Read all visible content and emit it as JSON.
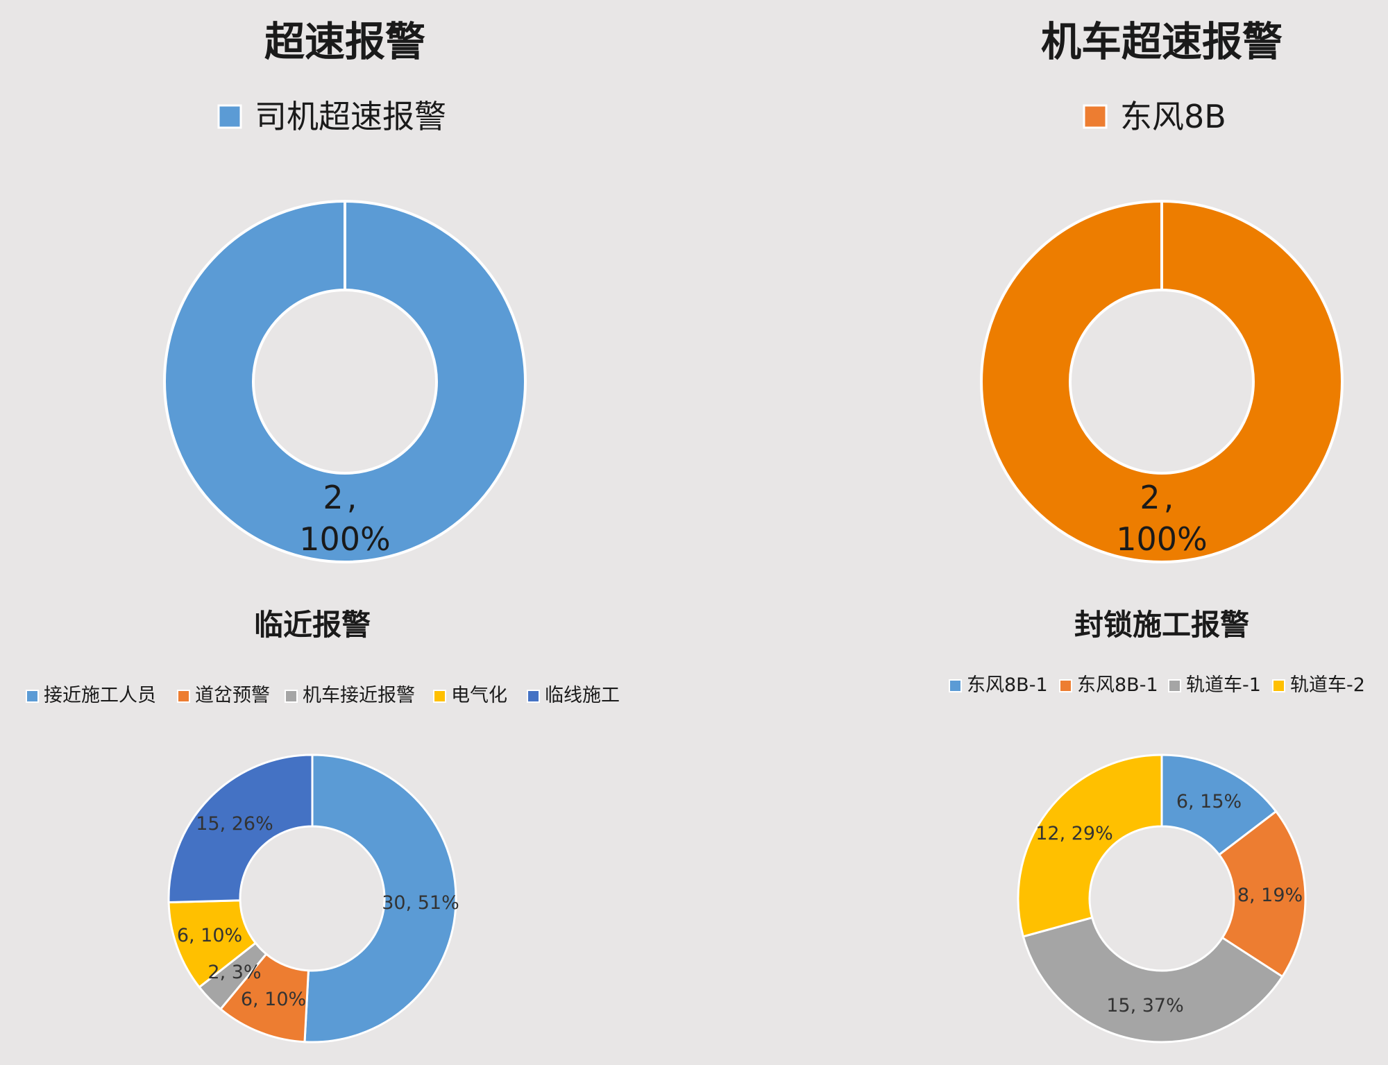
{
  "chart_data": [
    {
      "type": "pie",
      "title": "超速报警",
      "legend_position": "top",
      "series": [
        {
          "name": "司机超速报警",
          "value": 2,
          "percent": "100%",
          "color": "#5b9bd5"
        }
      ]
    },
    {
      "type": "pie",
      "title": "机车超速报警",
      "legend_position": "top",
      "series": [
        {
          "name": "东风8B",
          "value": 2,
          "percent": "100%",
          "color": "#ed7d31"
        }
      ]
    },
    {
      "type": "pie",
      "title": "临近报警",
      "legend_position": "top",
      "series": [
        {
          "name": "接近施工人员",
          "value": 30,
          "percent": "51%",
          "color": "#5b9bd5"
        },
        {
          "name": "道岔预警",
          "value": 6,
          "percent": "10%",
          "color": "#ed7d31"
        },
        {
          "name": "机车接近报警",
          "value": 2,
          "percent": "3%",
          "color": "#a5a5a5"
        },
        {
          "name": "电气化",
          "value": 6,
          "percent": "10%",
          "color": "#ffc000"
        },
        {
          "name": "临线施工",
          "value": 15,
          "percent": "26%",
          "color": "#4472c4"
        }
      ]
    },
    {
      "type": "pie",
      "title": "封锁施工报警",
      "legend_position": "top",
      "series": [
        {
          "name": "东风8B-1",
          "value": 6,
          "percent": "15%",
          "color": "#5b9bd5"
        },
        {
          "name": "东风8B-1",
          "value": 8,
          "percent": "19%",
          "color": "#ed7d31"
        },
        {
          "name": "轨道车-1",
          "value": 15,
          "percent": "37%",
          "color": "#a5a5a5"
        },
        {
          "name": "轨道车-2",
          "value": 12,
          "percent": "29%",
          "color": "#ffc000"
        }
      ]
    }
  ]
}
